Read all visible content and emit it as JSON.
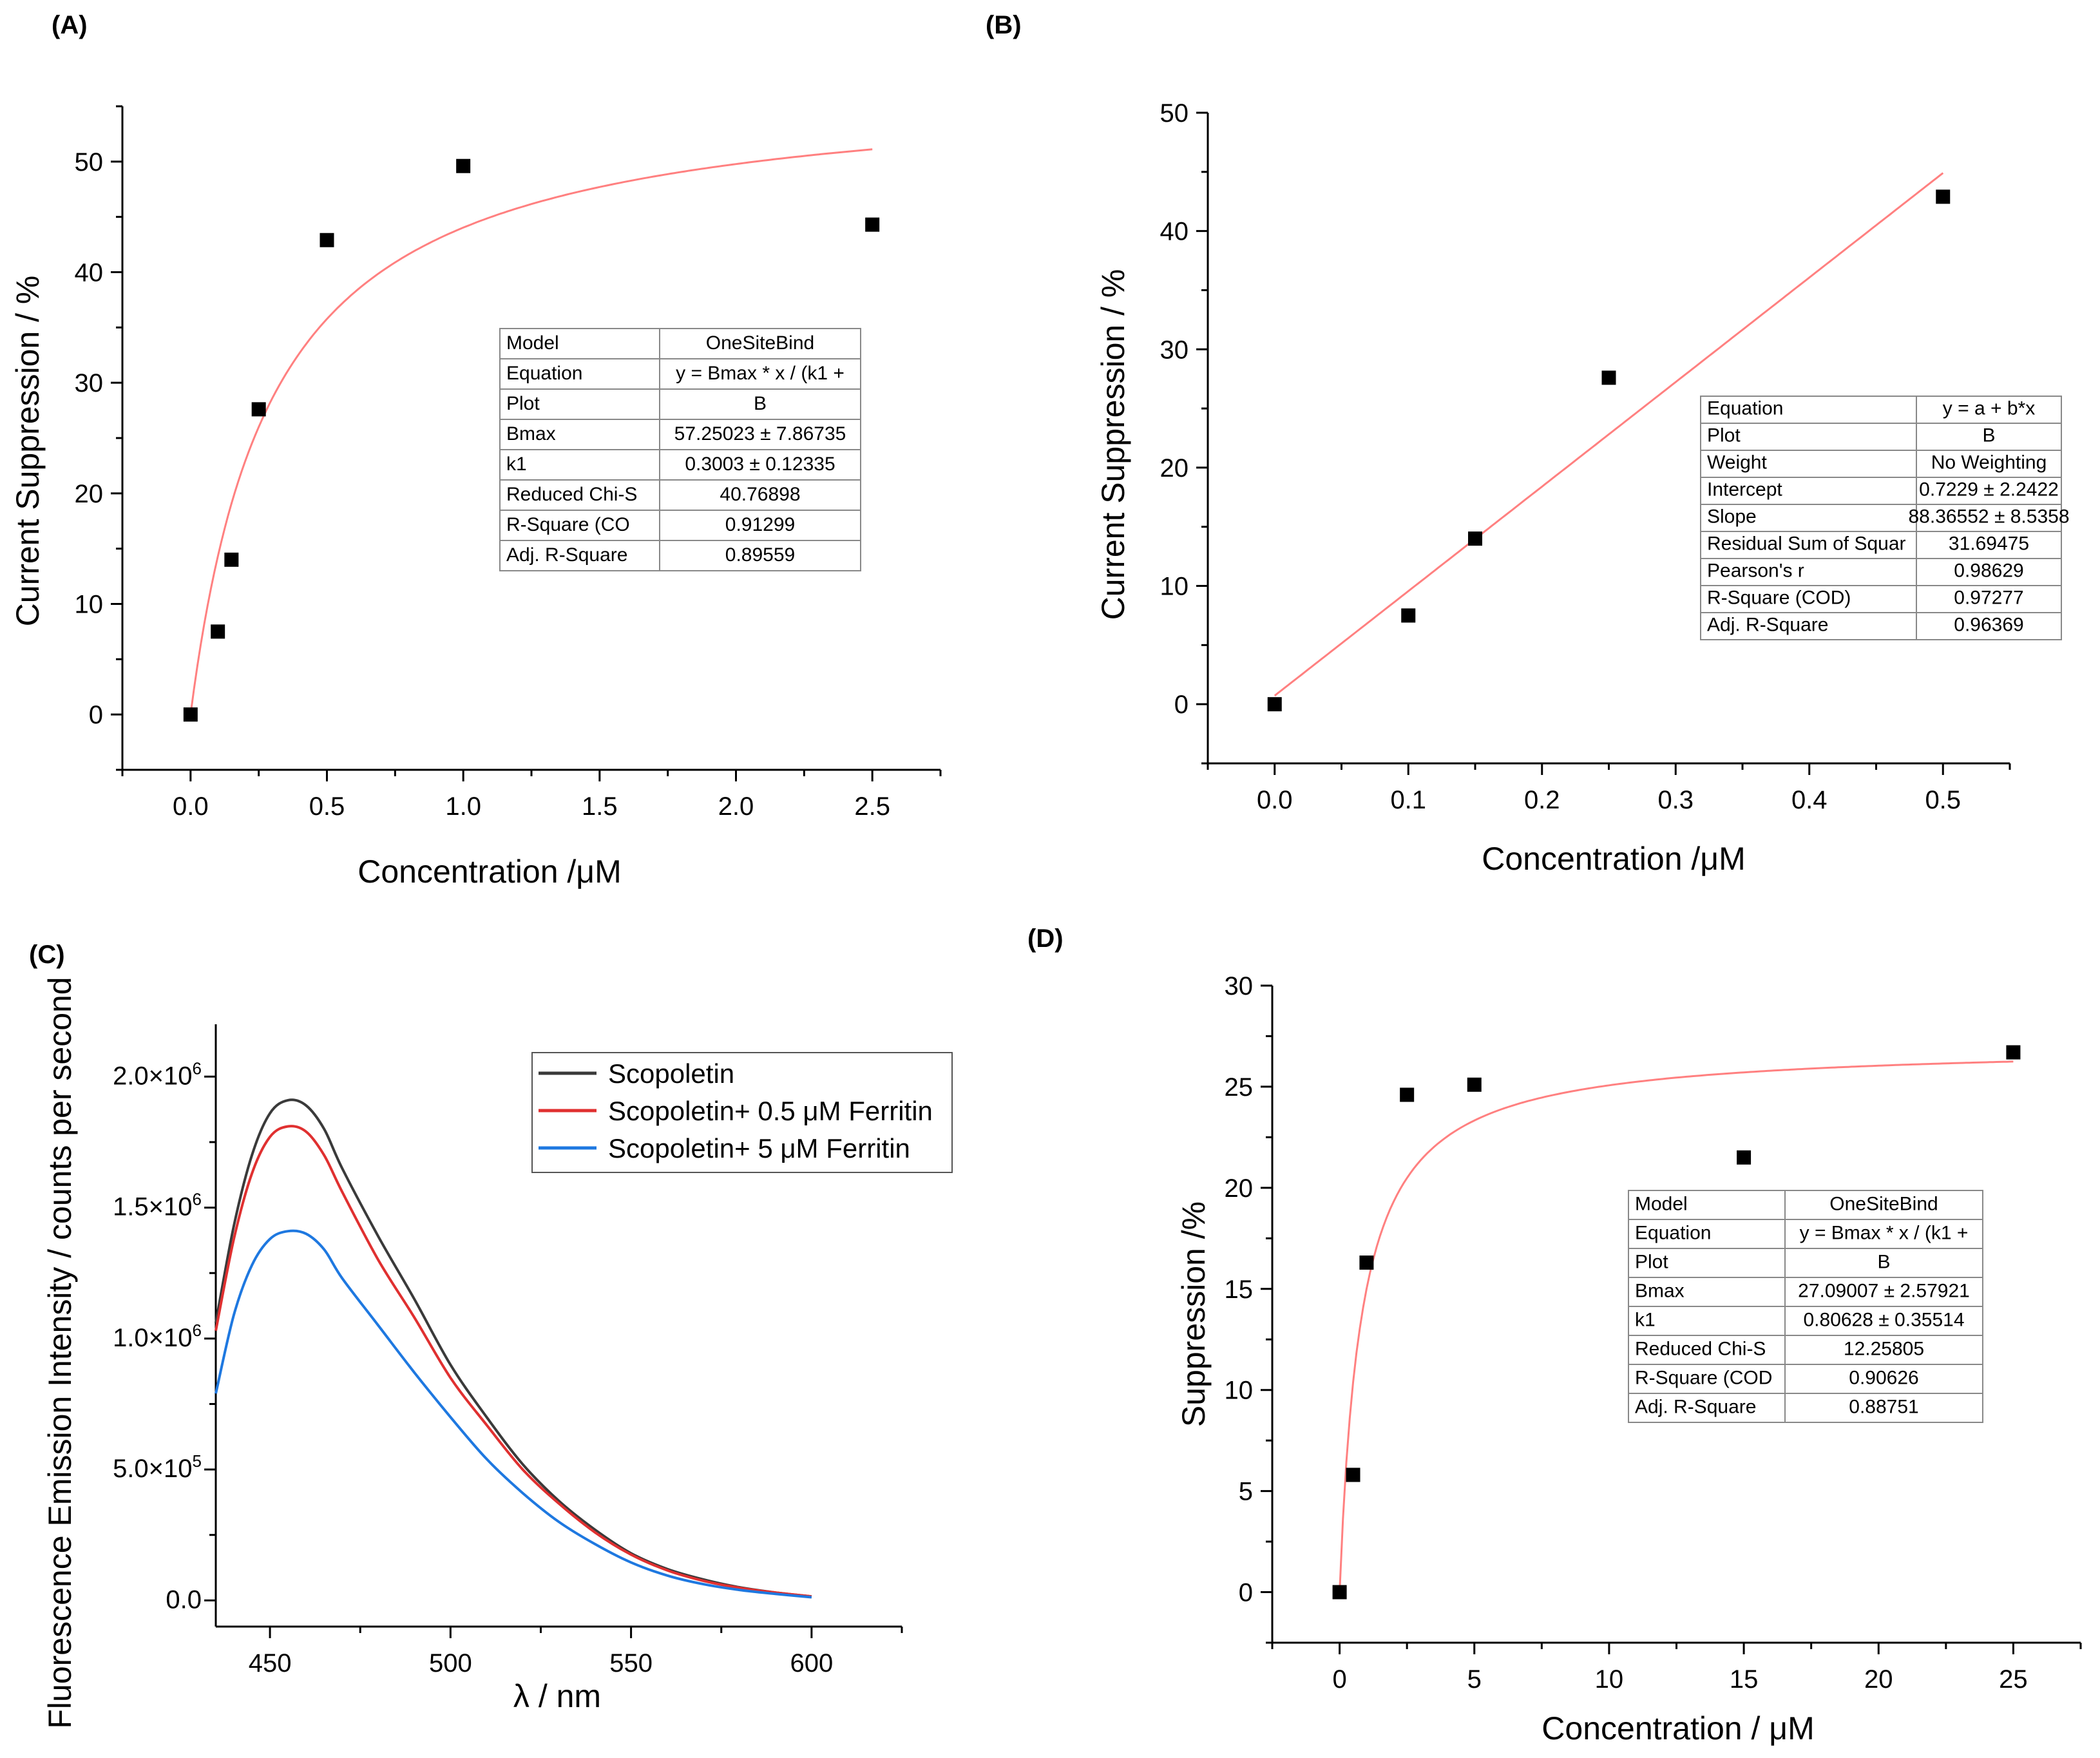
{
  "panels": [
    {
      "label": "(A)",
      "chart_data": {
        "type": "scatter",
        "xlabel": "Concentration /μM",
        "ylabel": "Current Suppression / %",
        "xlim": [
          -0.25,
          2.75
        ],
        "ylim": [
          -5,
          55
        ],
        "xticks": [
          0.0,
          0.5,
          1.0,
          1.5,
          2.0,
          2.5
        ],
        "yticks": [
          0,
          10,
          20,
          30,
          40,
          50
        ],
        "xtick_labels": [
          "0.0",
          "0.5",
          "1.0",
          "1.5",
          "2.0",
          "2.5"
        ],
        "ytick_labels": [
          "0",
          "10",
          "20",
          "30",
          "40",
          "50"
        ],
        "points": [
          {
            "x": 0.0,
            "y": 0.0
          },
          {
            "x": 0.1,
            "y": 7.5
          },
          {
            "x": 0.15,
            "y": 14.0
          },
          {
            "x": 0.25,
            "y": 27.6
          },
          {
            "x": 0.5,
            "y": 42.9
          },
          {
            "x": 1.0,
            "y": 49.6
          },
          {
            "x": 2.5,
            "y": 44.3
          }
        ],
        "fit": {
          "model": "OneSiteBind",
          "bmax": 57.25023,
          "k1": 0.3003,
          "x_range": [
            0,
            2.5
          ],
          "color": "#ff8080"
        },
        "table": [
          [
            "Model",
            "OneSiteBind"
          ],
          [
            "Equation",
            "y = Bmax * x / (k1 +"
          ],
          [
            "Plot",
            "B"
          ],
          [
            "Bmax",
            "57.25023 ± 7.86735"
          ],
          [
            "k1",
            "0.3003 ± 0.12335"
          ],
          [
            "Reduced Chi-S",
            "40.76898"
          ],
          [
            "R-Square (CO",
            "0.91299"
          ],
          [
            "Adj. R-Square",
            "0.89559"
          ]
        ]
      }
    },
    {
      "label": "(B)",
      "chart_data": {
        "type": "scatter",
        "xlabel": "Concentration /μM",
        "ylabel": "Current Suppression / %",
        "xlim": [
          -0.05,
          0.55
        ],
        "ylim": [
          -5,
          50
        ],
        "xticks": [
          0.0,
          0.1,
          0.2,
          0.3,
          0.4,
          0.5
        ],
        "yticks": [
          0,
          10,
          20,
          30,
          40,
          50
        ],
        "xtick_labels": [
          "0.0",
          "0.1",
          "0.2",
          "0.3",
          "0.4",
          "0.5"
        ],
        "ytick_labels": [
          "0",
          "10",
          "20",
          "30",
          "40",
          "50"
        ],
        "points": [
          {
            "x": 0.0,
            "y": 0.0
          },
          {
            "x": 0.1,
            "y": 7.5
          },
          {
            "x": 0.15,
            "y": 14.0
          },
          {
            "x": 0.25,
            "y": 27.6
          },
          {
            "x": 0.5,
            "y": 42.9
          }
        ],
        "fit": {
          "model": "linear",
          "a": 0.7229,
          "b": 88.36552,
          "x_range": [
            0,
            0.5
          ],
          "color": "#ff8080"
        },
        "table": [
          [
            "Equation",
            "y = a + b*x"
          ],
          [
            "Plot",
            "B"
          ],
          [
            "Weight",
            "No Weighting"
          ],
          [
            "Intercept",
            "0.7229 ± 2.2422"
          ],
          [
            "Slope",
            "88.36552 ± 8.5358"
          ],
          [
            "Residual Sum of Squar",
            "31.69475"
          ],
          [
            "Pearson's r",
            "0.98629"
          ],
          [
            "R-Square (COD)",
            "0.97277"
          ],
          [
            "Adj. R-Square",
            "0.96369"
          ]
        ]
      }
    },
    {
      "label": "(C)",
      "chart_data": {
        "type": "line",
        "xlabel": "λ / nm",
        "ylabel": "Fluorescence Emission Intensity / counts per second",
        "xlim": [
          435,
          625
        ],
        "ylim": [
          -100000,
          2200000
        ],
        "xticks": [
          450,
          500,
          550,
          600
        ],
        "yticks": [
          0,
          500000,
          1000000,
          1500000,
          2000000
        ],
        "xtick_labels": [
          "450",
          "500",
          "550",
          "600"
        ],
        "ytick_labels": [
          {
            "mantissa": "0.0",
            "exp": ""
          },
          {
            "mantissa": "5.0×10",
            "exp": "5"
          },
          {
            "mantissa": "1.0×10",
            "exp": "6"
          },
          {
            "mantissa": "1.5×10",
            "exp": "6"
          },
          {
            "mantissa": "2.0×10",
            "exp": "6"
          }
        ],
        "series": [
          {
            "name": "Scopoletin",
            "color": "#3a3a3a",
            "x": [
              435,
              440,
              445,
              450,
              455,
              460,
              465,
              470,
              480,
              490,
              500,
              510,
              520,
              530,
              540,
              550,
              560,
              570,
              580,
              590,
              600
            ],
            "y": [
              1060000,
              1430000,
              1700000,
              1860000,
              1910000,
              1890000,
              1800000,
              1650000,
              1390000,
              1150000,
              900000,
              700000,
              520000,
              380000,
              270000,
              180000,
              120000,
              80000,
              50000,
              30000,
              15000
            ]
          },
          {
            "name": "Scopoletin+ 0.5 μM Ferritin",
            "color": "#e03030",
            "x": [
              435,
              440,
              445,
              450,
              455,
              460,
              465,
              470,
              480,
              490,
              500,
              510,
              520,
              530,
              540,
              550,
              560,
              570,
              580,
              590,
              600
            ],
            "y": [
              1030000,
              1380000,
              1630000,
              1770000,
              1810000,
              1790000,
              1700000,
              1560000,
              1300000,
              1080000,
              850000,
              670000,
              500000,
              370000,
              260000,
              175000,
              115000,
              75000,
              48000,
              30000,
              15000
            ]
          },
          {
            "name": "Scopoletin+ 5 μM Ferritin",
            "color": "#1e78e0",
            "x": [
              435,
              440,
              445,
              450,
              455,
              460,
              465,
              470,
              480,
              490,
              500,
              510,
              520,
              530,
              540,
              550,
              560,
              570,
              580,
              590,
              600
            ],
            "y": [
              790000,
              1090000,
              1280000,
              1380000,
              1410000,
              1400000,
              1340000,
              1230000,
              1050000,
              870000,
              700000,
              540000,
              410000,
              300000,
              215000,
              145000,
              95000,
              62000,
              40000,
              25000,
              12000
            ]
          }
        ]
      }
    },
    {
      "label": "(D)",
      "chart_data": {
        "type": "scatter",
        "xlabel": "Concentration / μM",
        "ylabel": "Suppression /%",
        "xlim": [
          -2.5,
          27.5
        ],
        "ylim": [
          -2.5,
          30
        ],
        "xticks": [
          0,
          5,
          10,
          15,
          20,
          25
        ],
        "yticks": [
          0,
          5,
          10,
          15,
          20,
          25,
          30
        ],
        "xtick_labels": [
          "0",
          "5",
          "10",
          "15",
          "20",
          "25"
        ],
        "ytick_labels": [
          "0",
          "5",
          "10",
          "15",
          "20",
          "25",
          "30"
        ],
        "points": [
          {
            "x": 0,
            "y": 0.0
          },
          {
            "x": 0.5,
            "y": 5.8
          },
          {
            "x": 1,
            "y": 16.3
          },
          {
            "x": 2.5,
            "y": 24.6
          },
          {
            "x": 5,
            "y": 25.1
          },
          {
            "x": 15,
            "y": 21.5
          },
          {
            "x": 25,
            "y": 26.7
          }
        ],
        "fit": {
          "model": "OneSiteBind",
          "bmax": 27.09007,
          "k1": 0.80628,
          "x_range": [
            0,
            25
          ],
          "color": "#ff8080"
        },
        "table": [
          [
            "Model",
            "OneSiteBind"
          ],
          [
            "Equation",
            "y = Bmax * x / (k1 +"
          ],
          [
            "Plot",
            "B"
          ],
          [
            "Bmax",
            "27.09007 ± 2.57921"
          ],
          [
            "k1",
            "0.80628 ± 0.35514"
          ],
          [
            "Reduced Chi-S",
            "12.25805"
          ],
          [
            "R-Square (COD",
            "0.90626"
          ],
          [
            "Adj. R-Square",
            "0.88751"
          ]
        ]
      }
    }
  ]
}
